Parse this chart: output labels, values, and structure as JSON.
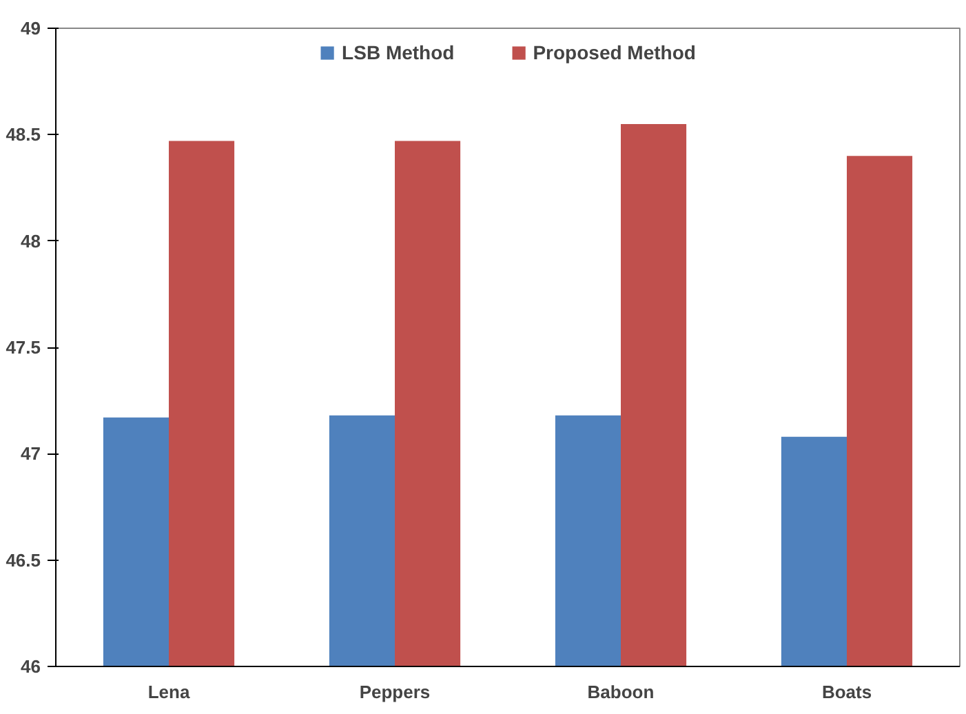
{
  "chart_data": {
    "type": "bar",
    "categories": [
      "Lena",
      "Peppers",
      "Baboon",
      "Boats"
    ],
    "series": [
      {
        "name": "LSB Method",
        "color": "#4f81bd",
        "values": [
          47.17,
          47.18,
          47.18,
          47.08
        ]
      },
      {
        "name": "Proposed Method",
        "color": "#c0504d",
        "values": [
          48.47,
          48.47,
          48.55,
          48.4
        ]
      }
    ],
    "ylim": [
      46,
      49
    ],
    "yticks": [
      46,
      46.5,
      47,
      47.5,
      48,
      48.5,
      49
    ],
    "grid": false,
    "legend": "top"
  }
}
